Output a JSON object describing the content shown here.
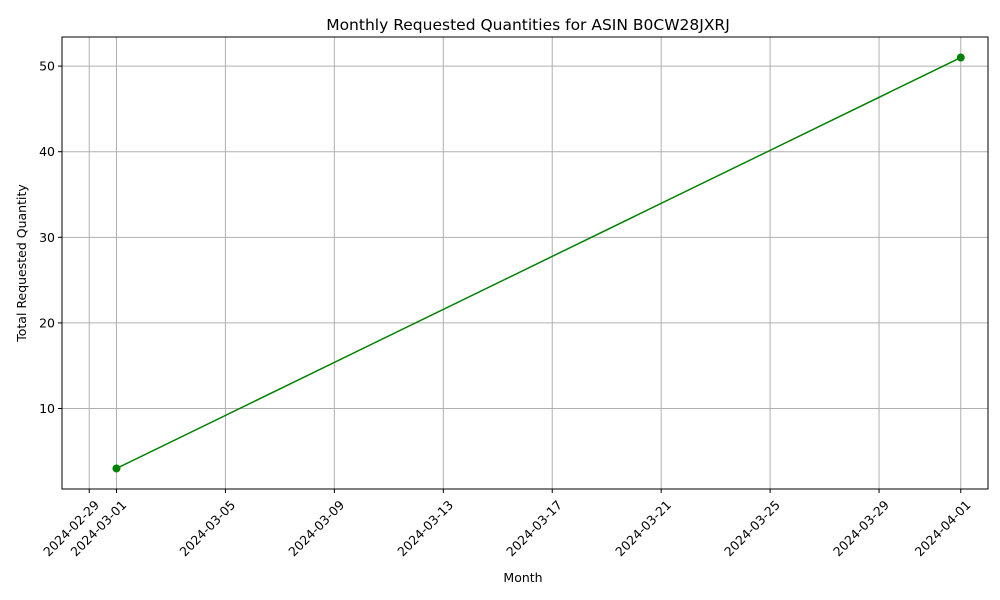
{
  "chart_data": {
    "type": "line",
    "title": "Monthly Requested Quantities for ASIN B0CW28JXRJ",
    "xlabel": "Month",
    "ylabel": "Total Requested Quantity",
    "x_scale": "date",
    "xlim": [
      "2024-02-28",
      "2024-04-02"
    ],
    "ylim": [
      0.6,
      53.4
    ],
    "x_ticks": [
      "2024-02-29",
      "2024-03-01",
      "2024-03-05",
      "2024-03-09",
      "2024-03-13",
      "2024-03-17",
      "2024-03-21",
      "2024-03-25",
      "2024-03-29",
      "2024-04-01"
    ],
    "y_ticks": [
      10,
      20,
      30,
      40,
      50
    ],
    "grid": true,
    "series": [
      {
        "color": "#008000",
        "marker": "circle",
        "points": [
          {
            "x": "2024-03-01",
            "y": 3
          },
          {
            "x": "2024-04-01",
            "y": 51
          }
        ]
      }
    ]
  }
}
